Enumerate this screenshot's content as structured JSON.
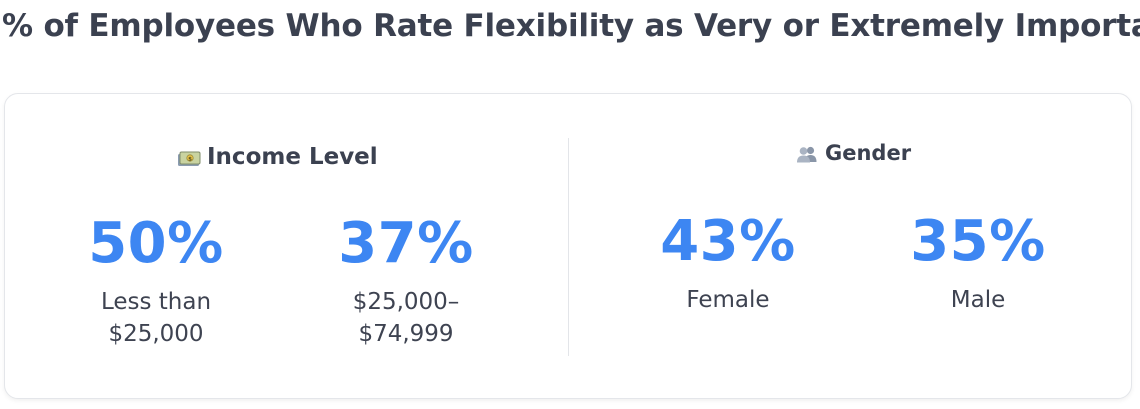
{
  "title": "% of Employees Who Rate Flexibility as Very or Extremely Important",
  "sections": {
    "income": {
      "heading": "Income Level",
      "icon": "money-icon",
      "stats": [
        {
          "value": "50%",
          "label_line1": "Less than",
          "label_line2": "$25,000"
        },
        {
          "value": "37%",
          "label_line1": "$25,000–",
          "label_line2": "$74,999"
        }
      ]
    },
    "gender": {
      "heading": "Gender",
      "icon": "people-icon",
      "stats": [
        {
          "value": "43%",
          "label": "Female"
        },
        {
          "value": "35%",
          "label": "Male"
        }
      ]
    }
  },
  "colors": {
    "accent": "#3d86f2",
    "text": "#3b4150"
  }
}
